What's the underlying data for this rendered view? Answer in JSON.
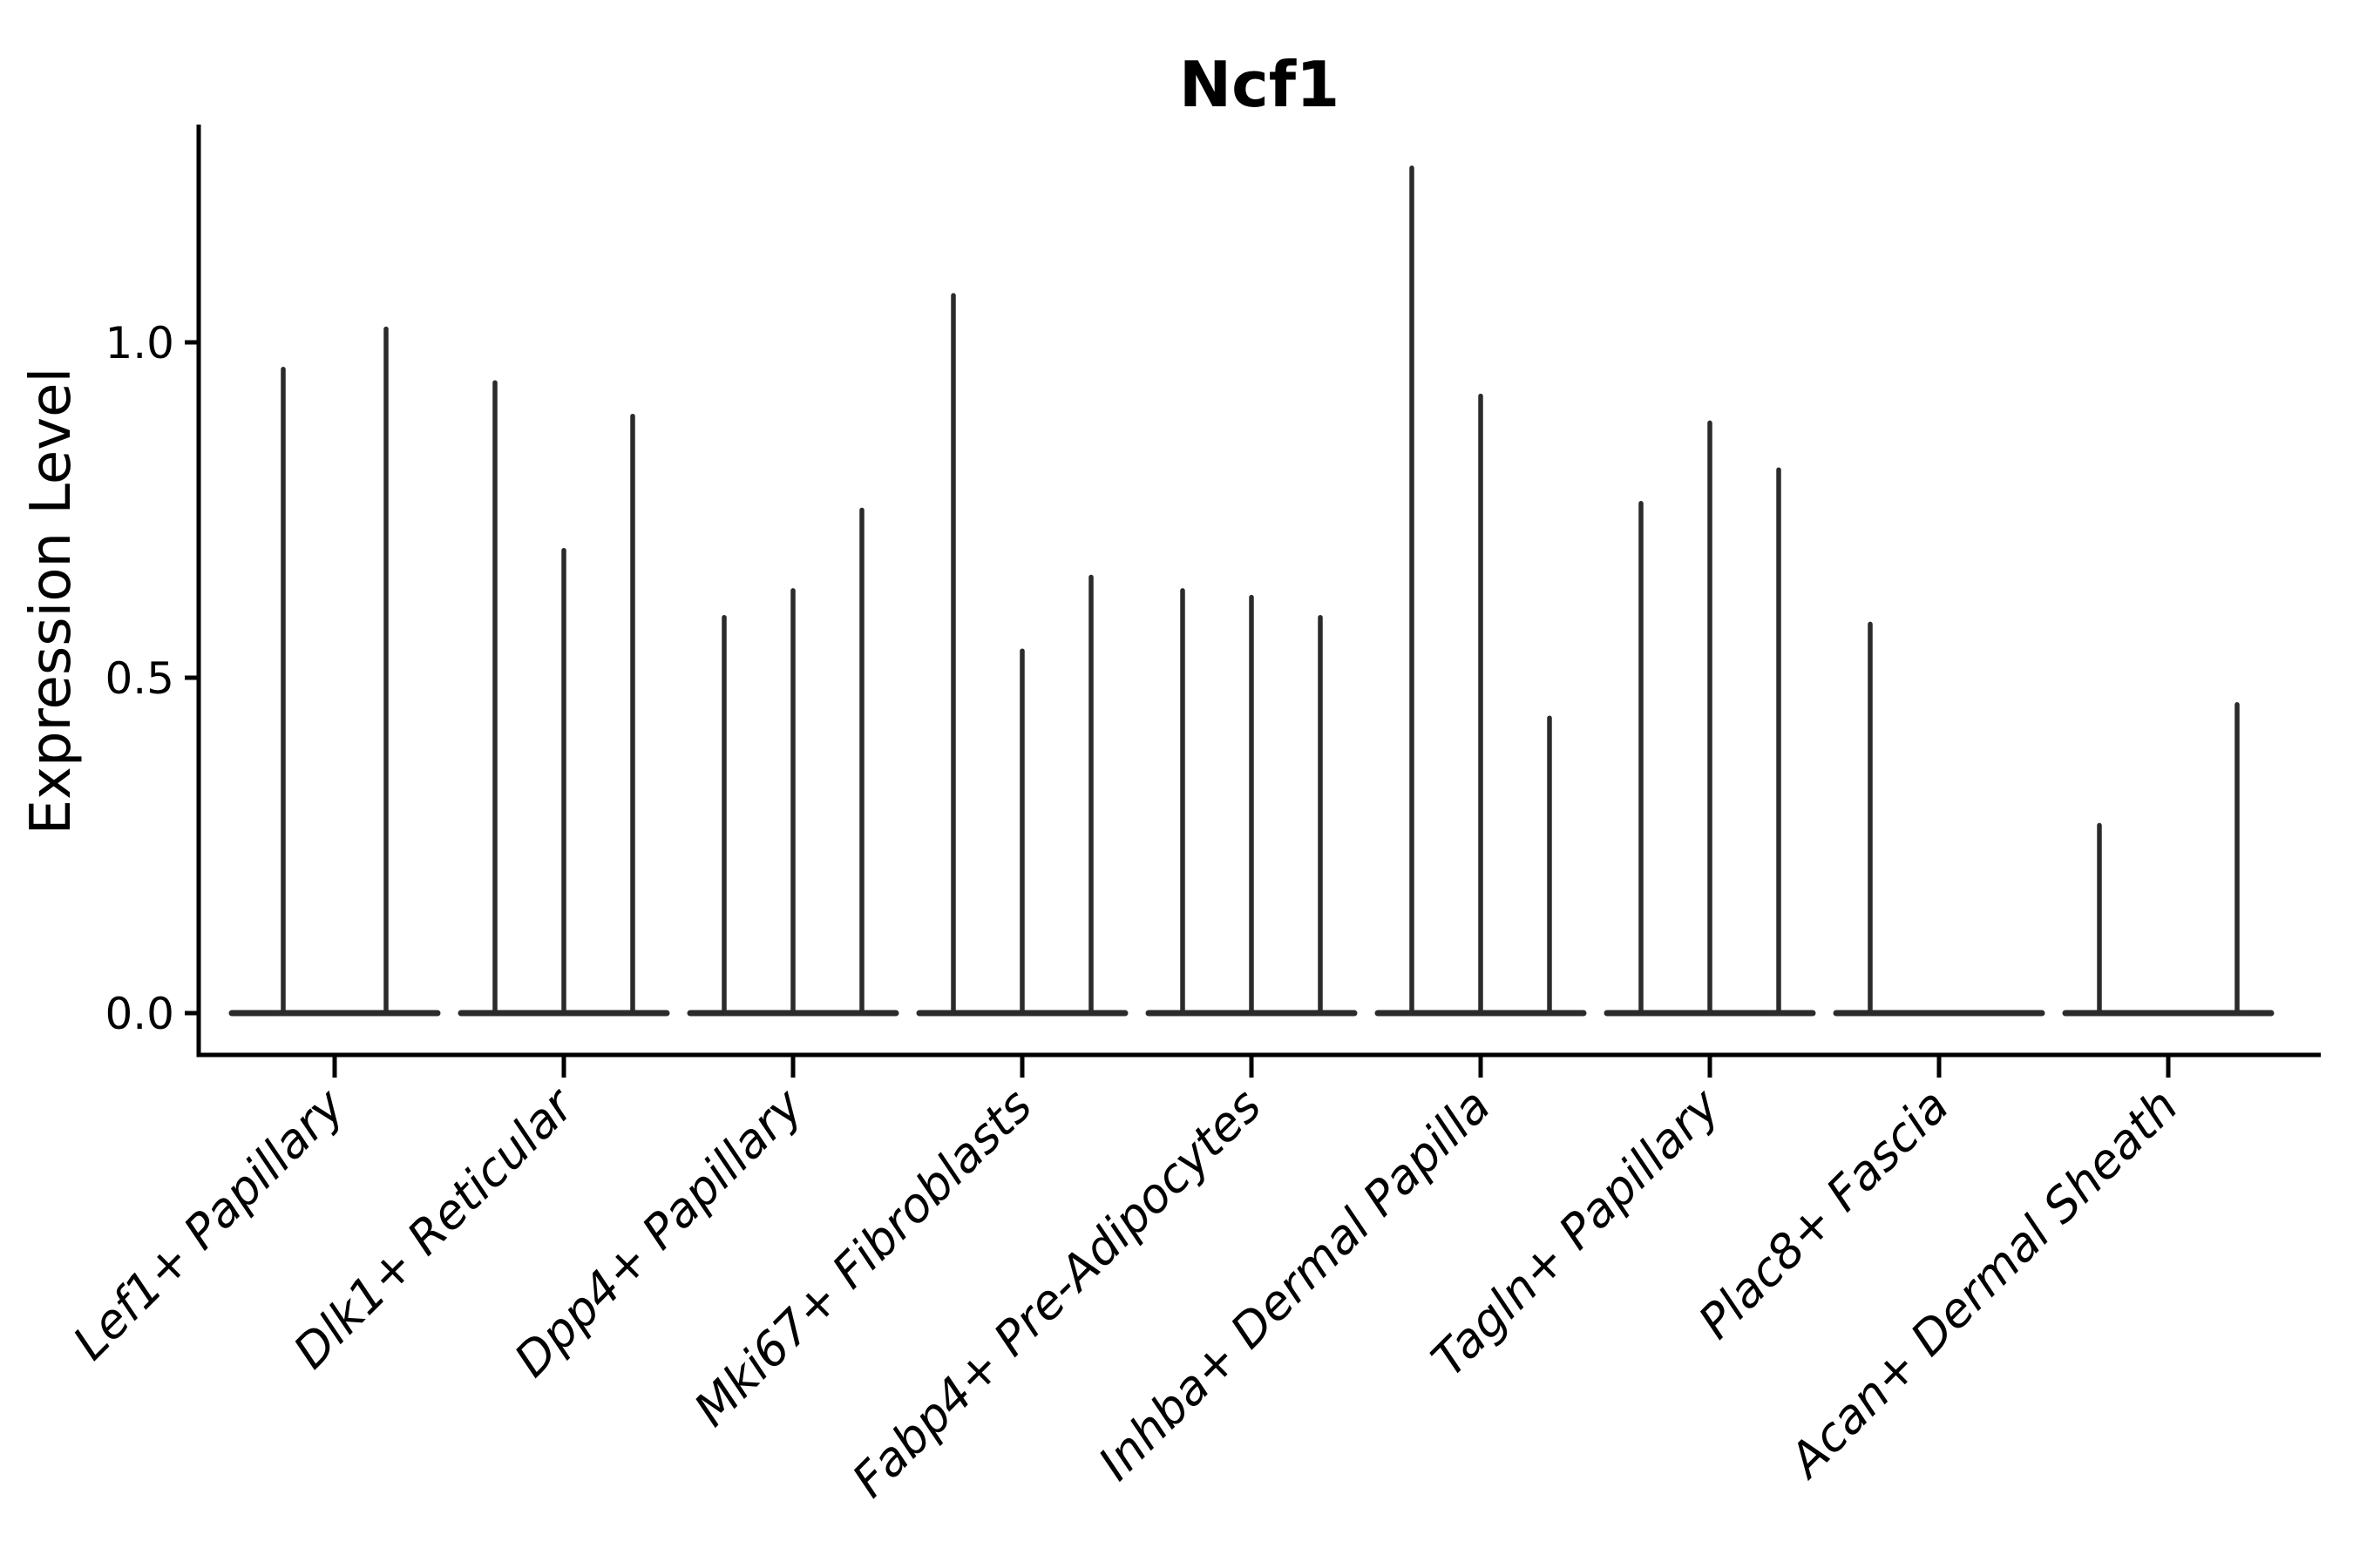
{
  "chart_data": {
    "type": "violin",
    "title": "Ncf1",
    "xlabel": "",
    "ylabel": "Expression Level",
    "ytick_labels": [
      "0.0",
      "0.5",
      "1.0"
    ],
    "ytick_values": [
      0.0,
      0.5,
      1.0
    ],
    "ylim": [
      -0.06,
      1.33
    ],
    "grid": "off",
    "legend_position": "none",
    "categories": [
      "Lef1+ Papillary",
      "Dlk1+ Reticular",
      "Dpp4+ Papillary",
      "Mki67+ Fibroblasts",
      "Fabp4+ Pre-Adipocytes",
      "Inhba+ Dermal Papilla",
      "Tagln+ Papillary",
      "Plac8+ Fascia",
      "Acan+ Dermal Sheath"
    ],
    "series_description": "Each category shows 2-3 thin violins; bodies are flat at expression 0 with a narrow spike up to the max expression value; 0 means a fully flat violin with no spike",
    "series": [
      {
        "category": "Lef1+ Papillary",
        "violin_max": [
          0.96,
          1.02
        ]
      },
      {
        "category": "Dlk1+ Reticular",
        "violin_max": [
          0.94,
          0.69,
          0.89
        ]
      },
      {
        "category": "Dpp4+ Papillary",
        "violin_max": [
          0.59,
          0.63,
          0.75
        ]
      },
      {
        "category": "Mki67+ Fibroblasts",
        "violin_max": [
          1.07,
          0.54,
          0.65
        ]
      },
      {
        "category": "Fabp4+ Pre-Adipocytes",
        "violin_max": [
          0.63,
          0.62,
          0.59
        ]
      },
      {
        "category": "Inhba+ Dermal Papilla",
        "violin_max": [
          1.26,
          0.92,
          0.44
        ]
      },
      {
        "category": "Tagln+ Papillary",
        "violin_max": [
          0.76,
          0.88,
          0.81
        ]
      },
      {
        "category": "Plac8+ Fascia",
        "violin_max": [
          0.58,
          0,
          0
        ]
      },
      {
        "category": "Acan+ Dermal Sheath",
        "violin_max": [
          0.28,
          0,
          0.46
        ]
      }
    ],
    "colors": {
      "violin": "#2b2b2b",
      "axis": "#000000",
      "text": "#000000",
      "background": "#ffffff"
    }
  }
}
